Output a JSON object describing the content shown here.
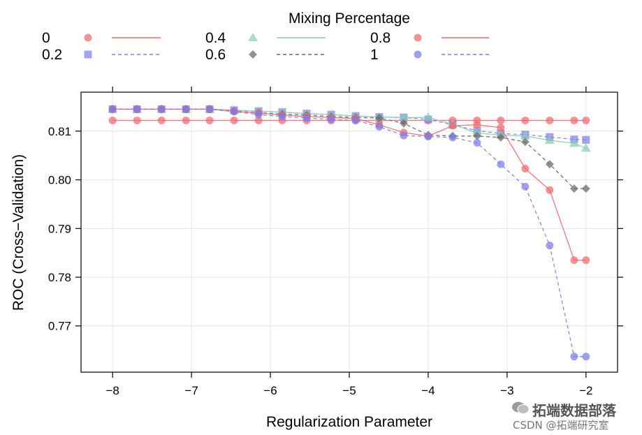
{
  "chart_data": {
    "type": "line",
    "legend_title": "Mixing Percentage",
    "legend_placement": "top",
    "xlabel": "Regularization Parameter",
    "ylabel": "ROC (Cross−Validation)",
    "xlim": [
      -8.4,
      -1.6
    ],
    "ylim": [
      0.7605,
      0.818
    ],
    "x_ticks": [
      -8,
      -7,
      -6,
      -5,
      -4,
      -3,
      -2
    ],
    "x_tick_labels": [
      "−8",
      "−7",
      "−6",
      "−5",
      "−4",
      "−3",
      "−2"
    ],
    "y_ticks": [
      0.77,
      0.78,
      0.79,
      0.8,
      0.81
    ],
    "y_tick_labels": [
      "0.77",
      "0.78",
      "0.79",
      "0.80",
      "0.81"
    ],
    "grid": true,
    "x": [
      -8,
      -7.69,
      -7.38,
      -7.07,
      -6.77,
      -6.46,
      -6.15,
      -5.85,
      -5.54,
      -5.23,
      -4.92,
      -4.62,
      -4.31,
      -4.0,
      -3.69,
      -3.38,
      -3.08,
      -2.77,
      -2.46,
      -2.15,
      -2.0
    ],
    "series": [
      {
        "name": "0",
        "marker": "circle",
        "line": "solid",
        "color": "#ee6a6e",
        "values": [
          0.8122,
          0.8122,
          0.8122,
          0.8122,
          0.8122,
          0.8122,
          0.8122,
          0.8122,
          0.8122,
          0.8122,
          0.8122,
          0.8122,
          0.8122,
          0.8122,
          0.8122,
          0.8122,
          0.8122,
          0.8122,
          0.8122,
          0.8122,
          0.8122
        ]
      },
      {
        "name": "0.2",
        "marker": "square",
        "line": "dashed",
        "color": "#8080ee",
        "values": [
          0.8145,
          0.8145,
          0.8145,
          0.8145,
          0.8145,
          0.8143,
          0.8141,
          0.8139,
          0.8136,
          0.8134,
          0.8131,
          0.8129,
          0.8128,
          0.8124,
          0.8113,
          0.8101,
          0.8095,
          0.8093,
          0.8088,
          0.8083,
          0.8082
        ]
      },
      {
        "name": "0.4",
        "marker": "triangle",
        "line": "solid",
        "color": "#88ccb0",
        "values": [
          0.8145,
          0.8145,
          0.8145,
          0.8145,
          0.8145,
          0.8143,
          0.8141,
          0.8139,
          0.8136,
          0.8134,
          0.8131,
          0.8129,
          0.8128,
          0.8128,
          0.8114,
          0.8096,
          0.8092,
          0.809,
          0.8081,
          0.8075,
          0.8065
        ]
      },
      {
        "name": "0.6",
        "marker": "diamond",
        "line": "dashed",
        "color": "#666666",
        "values": [
          0.8145,
          0.8145,
          0.8145,
          0.8145,
          0.8145,
          0.8141,
          0.8138,
          0.8135,
          0.8133,
          0.813,
          0.8128,
          0.8127,
          0.8116,
          0.8092,
          0.809,
          0.809,
          0.8087,
          0.8078,
          0.8032,
          0.7982,
          0.7982
        ]
      },
      {
        "name": "0.8",
        "marker": "circle",
        "line": "solid",
        "color": "#ee6a6e",
        "values": [
          0.8145,
          0.8145,
          0.8145,
          0.8145,
          0.8145,
          0.8141,
          0.8137,
          0.8133,
          0.813,
          0.8128,
          0.8126,
          0.8113,
          0.8097,
          0.809,
          0.8111,
          0.8113,
          0.8107,
          0.8023,
          0.7979,
          0.7835,
          0.7835
        ]
      },
      {
        "name": "1",
        "marker": "circle",
        "line": "dashed",
        "color": "#7c7cee",
        "values": [
          0.8145,
          0.8145,
          0.8145,
          0.8145,
          0.8145,
          0.814,
          0.8134,
          0.813,
          0.8127,
          0.8124,
          0.8122,
          0.8109,
          0.8091,
          0.8089,
          0.8087,
          0.8076,
          0.8032,
          0.7986,
          0.7865,
          0.7637,
          0.7637
        ]
      }
    ]
  },
  "watermark": {
    "line1": "拓端数据部落",
    "line2": "CSDN @拓端研究室"
  }
}
